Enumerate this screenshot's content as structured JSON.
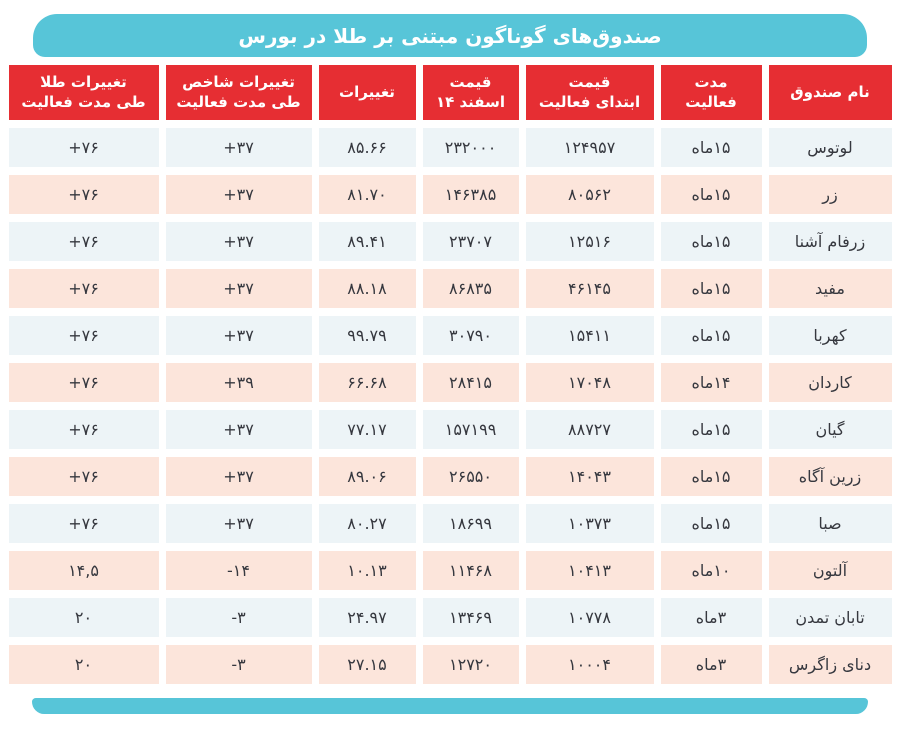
{
  "title": "صندوق‌های گوناگون مبتنی بر طلا در بورس",
  "colors": {
    "accent_teal": "#57c5d8",
    "header_red": "#e62e33",
    "row_blue": "#edf4f7",
    "row_peach": "#fce5db",
    "text_dark": "#36383f",
    "header_text": "#ffffff"
  },
  "chart_data": {
    "type": "table",
    "title": "صندوق‌های گوناگون مبتنی بر طلا در بورس",
    "columns": [
      {
        "id": "name",
        "label_line1": "نام صندوق",
        "label_line2": "",
        "numeric": false
      },
      {
        "id": "duration",
        "label_line1": "مدت",
        "label_line2": "فعالیت",
        "numeric": false
      },
      {
        "id": "start_price",
        "label_line1": "قیمت",
        "label_line2": "ابتدای فعالیت",
        "numeric": true
      },
      {
        "id": "esfand_price",
        "label_line1": "قیمت",
        "label_line2": "اسفند ۱۴",
        "numeric": true
      },
      {
        "id": "change",
        "label_line1": "تغییرات",
        "label_line2": "",
        "numeric": true
      },
      {
        "id": "index_change",
        "label_line1": "تغییرات شاخص",
        "label_line2": "طی مدت فعالیت",
        "numeric": true
      },
      {
        "id": "gold_change",
        "label_line1": "تغییرات طلا",
        "label_line2": "طی مدت فعالیت",
        "numeric": true
      }
    ],
    "rows": [
      {
        "name": "لوتوس",
        "duration": "۱۵ماه",
        "start_price": "۱۲۴۹۵۷",
        "esfand_price": "۲۳۲۰۰۰",
        "change": "۸۵.۶۶",
        "index_change": "+۳۷",
        "gold_change": "+۷۶"
      },
      {
        "name": "زر",
        "duration": "۱۵ماه",
        "start_price": "۸۰۵۶۲",
        "esfand_price": "۱۴۶۳۸۵",
        "change": "۸۱.۷۰",
        "index_change": "+۳۷",
        "gold_change": "+۷۶"
      },
      {
        "name": "زرفام آشنا",
        "duration": "۱۵ماه",
        "start_price": "۱۲۵۱۶",
        "esfand_price": "۲۳۷۰۷",
        "change": "۸۹.۴۱",
        "index_change": "+۳۷",
        "gold_change": "+۷۶"
      },
      {
        "name": "مفید",
        "duration": "۱۵ماه",
        "start_price": "۴۶۱۴۵",
        "esfand_price": "۸۶۸۳۵",
        "change": "۸۸.۱۸",
        "index_change": "+۳۷",
        "gold_change": "+۷۶"
      },
      {
        "name": "کهربا",
        "duration": "۱۵ماه",
        "start_price": "۱۵۴۱۱",
        "esfand_price": "۳۰۷۹۰",
        "change": "۹۹.۷۹",
        "index_change": "+۳۷",
        "gold_change": "+۷۶"
      },
      {
        "name": "کاردان",
        "duration": "۱۴ماه",
        "start_price": "۱۷۰۴۸",
        "esfand_price": "۲۸۴۱۵",
        "change": "۶۶.۶۸",
        "index_change": "+۳۹",
        "gold_change": "+۷۶"
      },
      {
        "name": "گیان",
        "duration": "۱۵ماه",
        "start_price": "۸۸۷۲۷",
        "esfand_price": "۱۵۷۱۹۹",
        "change": "۷۷.۱۷",
        "index_change": "+۳۷",
        "gold_change": "+۷۶"
      },
      {
        "name": "زرین آگاه",
        "duration": "۱۵ماه",
        "start_price": "۱۴۰۴۳",
        "esfand_price": "۲۶۵۵۰",
        "change": "۸۹.۰۶",
        "index_change": "+۳۷",
        "gold_change": "+۷۶"
      },
      {
        "name": "صبا",
        "duration": "۱۵ماه",
        "start_price": "۱۰۳۷۳",
        "esfand_price": "۱۸۶۹۹",
        "change": "۸۰.۲۷",
        "index_change": "+۳۷",
        "gold_change": "+۷۶"
      },
      {
        "name": "آلتون",
        "duration": "۱۰ماه",
        "start_price": "۱۰۴۱۳",
        "esfand_price": "۱۱۴۶۸",
        "change": "۱۰.۱۳",
        "index_change": "-۱۴",
        "gold_change": "۱۴,۵"
      },
      {
        "name": "تابان تمدن",
        "duration": "۳ماه",
        "start_price": "۱۰۷۷۸",
        "esfand_price": "۱۳۴۶۹",
        "change": "۲۴.۹۷",
        "index_change": "-۳",
        "gold_change": "۲۰"
      },
      {
        "name": "دنای زاگرس",
        "duration": "۳ماه",
        "start_price": "۱۰۰۰۴",
        "esfand_price": "۱۲۷۲۰",
        "change": "۲۷.۱۵",
        "index_change": "-۳",
        "gold_change": "۲۰"
      }
    ]
  }
}
